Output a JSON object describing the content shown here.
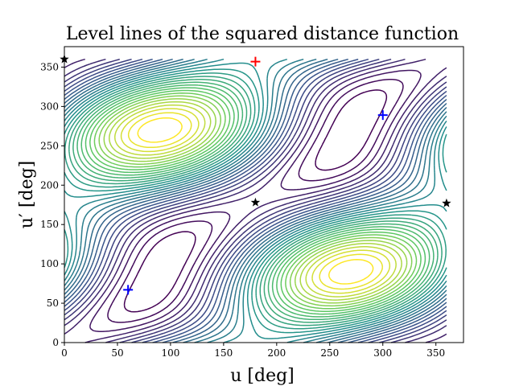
{
  "chart_data": {
    "type": "contour",
    "title": "Level lines of the squared distance function",
    "xlabel": "u [deg]",
    "ylabel": "u′ [deg]",
    "xlim": [
      0,
      376
    ],
    "ylim": [
      0,
      376
    ],
    "xticks": [
      0,
      50,
      100,
      150,
      200,
      250,
      300,
      350
    ],
    "yticks": [
      0,
      50,
      100,
      150,
      200,
      250,
      300,
      350
    ],
    "grid": false,
    "colormap": [
      "#440154",
      "#3b528b",
      "#21918c",
      "#5ec962",
      "#fde725"
    ],
    "contour_levels": 32,
    "markers": [
      {
        "symbol": "star",
        "color": "#000000",
        "x": 0,
        "y": 360
      },
      {
        "symbol": "star",
        "color": "#000000",
        "x": 180,
        "y": 178
      },
      {
        "symbol": "star",
        "color": "#000000",
        "x": 360,
        "y": 177
      },
      {
        "symbol": "plus",
        "color": "#ff0000",
        "x": 180,
        "y": 357
      },
      {
        "symbol": "plus",
        "color": "#0000ff",
        "x": 60,
        "y": 67
      },
      {
        "symbol": "plus",
        "color": "#0000ff",
        "x": 300,
        "y": 289
      }
    ]
  }
}
